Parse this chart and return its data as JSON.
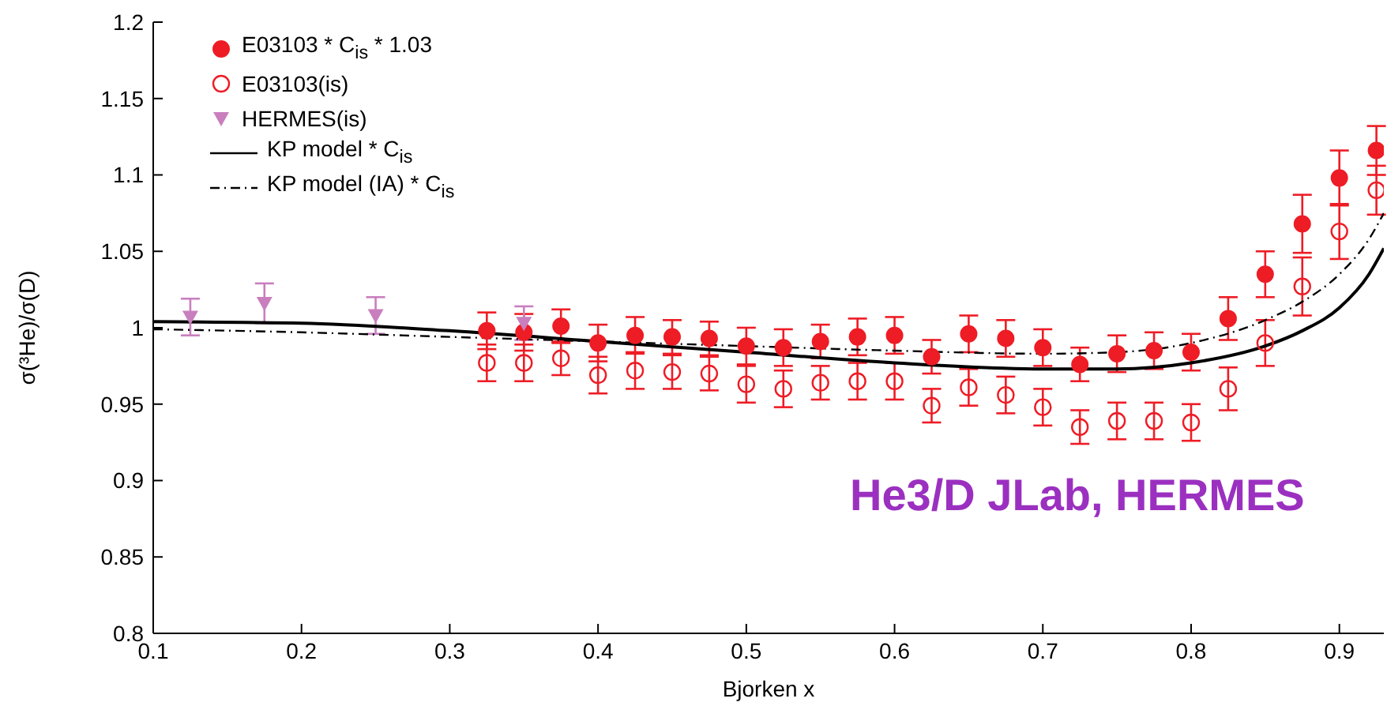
{
  "chart_data": {
    "type": "scatter",
    "xlabel": "Bjorken x",
    "ylabel": "σ(³He)/σ(D)",
    "xlim": [
      0.1,
      0.93
    ],
    "xticks": [
      0.1,
      0.2,
      0.3,
      0.4,
      0.5,
      0.6,
      0.7,
      0.8,
      0.9
    ],
    "ylim": [
      0.8,
      1.2
    ],
    "yticks": [
      0.8,
      0.85,
      0.9,
      0.95,
      1,
      1.05,
      1.1,
      1.15,
      1.2
    ],
    "grid": false,
    "legend": "top left",
    "annotations": [
      "He3/D JLab, HERMES"
    ],
    "series": [
      {
        "name": "E03103 * C$_{is}$ * 1.03",
        "marker": "circle",
        "color": "#ee1c25",
        "x": [
          0.325,
          0.35,
          0.375,
          0.4,
          0.425,
          0.45,
          0.475,
          0.5,
          0.525,
          0.55,
          0.575,
          0.6,
          0.625,
          0.65,
          0.675,
          0.7,
          0.725,
          0.75,
          0.775,
          0.8,
          0.825,
          0.85,
          0.875,
          0.9,
          0.925
        ],
        "values": [
          0.998,
          0.997,
          1.001,
          0.99,
          0.995,
          0.994,
          0.993,
          0.988,
          0.987,
          0.991,
          0.994,
          0.995,
          0.981,
          0.996,
          0.993,
          0.987,
          0.976,
          0.983,
          0.985,
          0.984,
          1.006,
          1.035,
          1.068,
          1.098,
          1.116
        ],
        "errors": [
          0.012,
          0.012,
          0.011,
          0.012,
          0.012,
          0.011,
          0.011,
          0.012,
          0.012,
          0.011,
          0.012,
          0.012,
          0.011,
          0.012,
          0.012,
          0.012,
          0.011,
          0.012,
          0.012,
          0.012,
          0.014,
          0.015,
          0.019,
          0.018,
          0.016
        ]
      },
      {
        "name": "E03103(is)",
        "marker": "circle-open",
        "color": "#ee1c25",
        "x": [
          0.325,
          0.35,
          0.375,
          0.4,
          0.425,
          0.45,
          0.475,
          0.5,
          0.525,
          0.55,
          0.575,
          0.6,
          0.625,
          0.65,
          0.675,
          0.7,
          0.725,
          0.75,
          0.775,
          0.8,
          0.825,
          0.85,
          0.875,
          0.9,
          0.925
        ],
        "values": [
          0.977,
          0.977,
          0.98,
          0.969,
          0.972,
          0.971,
          0.97,
          0.963,
          0.96,
          0.964,
          0.965,
          0.965,
          0.949,
          0.961,
          0.956,
          0.948,
          0.935,
          0.939,
          0.939,
          0.938,
          0.96,
          0.99,
          1.027,
          1.063,
          1.09
        ],
        "errors": [
          0.012,
          0.012,
          0.011,
          0.012,
          0.012,
          0.011,
          0.011,
          0.012,
          0.012,
          0.011,
          0.012,
          0.012,
          0.011,
          0.012,
          0.012,
          0.012,
          0.011,
          0.012,
          0.012,
          0.012,
          0.014,
          0.015,
          0.019,
          0.018,
          0.016
        ]
      },
      {
        "name": "HERMES(is)",
        "marker": "triangle",
        "color": "#c97fbe",
        "x": [
          0.125,
          0.175,
          0.25,
          0.35
        ],
        "values": [
          1.007,
          1.016,
          1.008,
          1.003
        ],
        "errors": [
          0.012,
          0.013,
          0.012,
          0.011
        ]
      },
      {
        "name": "KP model * C$_{is}$",
        "type": "line",
        "marker": "none",
        "line_style": "solid",
        "color": "#000000",
        "x": [
          0.1,
          0.2,
          0.3,
          0.4,
          0.5,
          0.6,
          0.7,
          0.75,
          0.8,
          0.85,
          0.875,
          0.9,
          0.92,
          0.93
        ],
        "values": [
          1.004,
          1.003,
          0.998,
          0.991,
          0.984,
          0.977,
          0.973,
          0.973,
          0.977,
          0.988,
          0.998,
          1.013,
          1.035,
          1.052
        ]
      },
      {
        "name": "KP model (IA) * C$_{is}$",
        "type": "line",
        "marker": "none",
        "line_style": "dashed",
        "color": "#000000",
        "x": [
          0.1,
          0.2,
          0.3,
          0.4,
          0.5,
          0.6,
          0.7,
          0.75,
          0.8,
          0.85,
          0.875,
          0.9,
          0.92,
          0.93
        ],
        "values": [
          0.999,
          0.997,
          0.994,
          0.991,
          0.988,
          0.985,
          0.983,
          0.984,
          0.99,
          1.005,
          1.017,
          1.035,
          1.058,
          1.075
        ]
      }
    ]
  }
}
